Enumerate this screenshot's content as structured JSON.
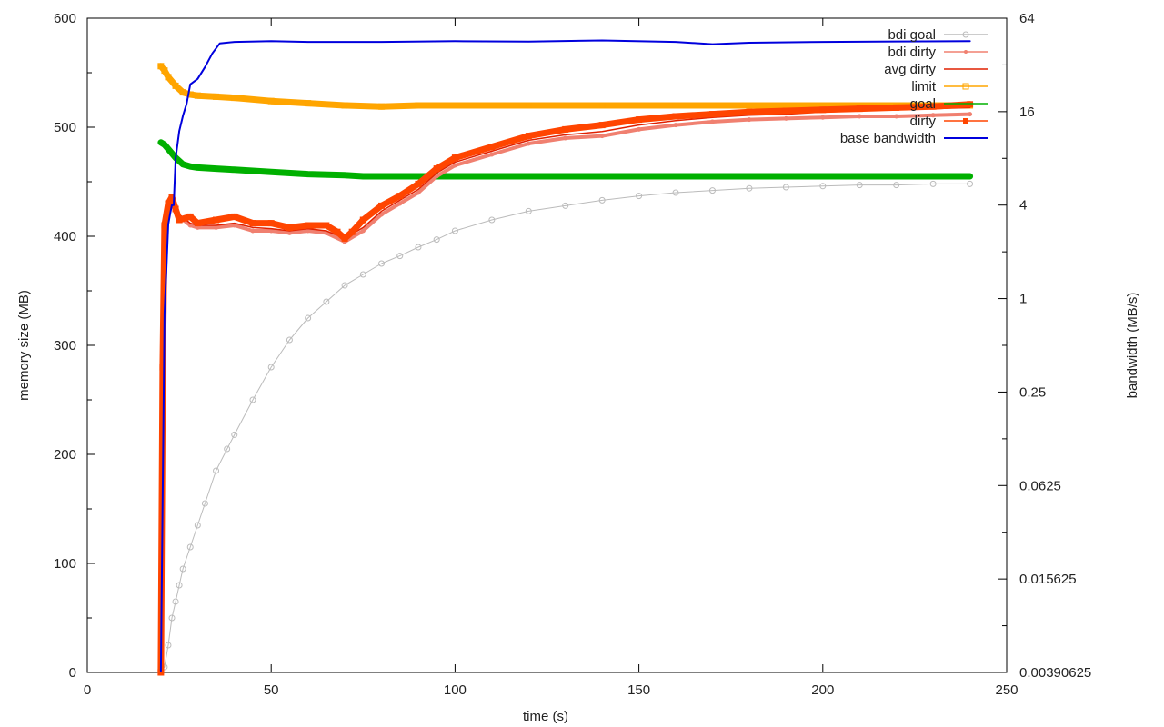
{
  "chart_data": {
    "type": "line",
    "title": "",
    "xlabel": "time (s)",
    "ylabel": "memory size (MB)",
    "y2label": "bandwidth (MB/s)",
    "xlim": [
      0,
      250
    ],
    "ylim": [
      0,
      600
    ],
    "y2lim": [
      0.00390625,
      64
    ],
    "y2scale": "log",
    "grid": false,
    "legend_position": "top-right",
    "xticks": [
      "0",
      "50",
      "100",
      "150",
      "200",
      "250"
    ],
    "yticks": [
      "0",
      "100",
      "200",
      "300",
      "400",
      "500",
      "600"
    ],
    "y2ticks": [
      "0.00390625",
      "0.015625",
      "0.0625",
      "0.25",
      "1",
      "4",
      "16",
      "64"
    ],
    "series": [
      {
        "name": "bdi goal",
        "color": "#bbbbbb",
        "axis": "left",
        "marker": "circle",
        "x": [
          20,
          21,
          22,
          23,
          24,
          25,
          26,
          28,
          30,
          32,
          35,
          38,
          40,
          45,
          50,
          55,
          60,
          65,
          70,
          75,
          80,
          85,
          90,
          95,
          100,
          110,
          120,
          130,
          140,
          150,
          160,
          170,
          180,
          190,
          200,
          210,
          220,
          230,
          240
        ],
        "values": [
          0,
          5,
          25,
          50,
          65,
          80,
          95,
          115,
          135,
          155,
          185,
          205,
          218,
          250,
          280,
          305,
          325,
          340,
          355,
          365,
          375,
          382,
          390,
          397,
          405,
          415,
          423,
          428,
          433,
          437,
          440,
          442,
          444,
          445,
          446,
          447,
          447,
          448,
          448
        ]
      },
      {
        "name": "bdi dirty",
        "color": "#f08070",
        "axis": "left",
        "marker": "diamond",
        "x": [
          20,
          20.5,
          21,
          22,
          23,
          25,
          28,
          30,
          35,
          40,
          45,
          50,
          55,
          60,
          65,
          70,
          75,
          80,
          85,
          90,
          95,
          100,
          110,
          120,
          130,
          140,
          150,
          160,
          170,
          180,
          190,
          200,
          210,
          220,
          230,
          240
        ],
        "values": [
          0,
          250,
          400,
          425,
          430,
          418,
          410,
          408,
          408,
          410,
          405,
          405,
          403,
          405,
          403,
          395,
          405,
          420,
          430,
          440,
          455,
          465,
          475,
          485,
          490,
          492,
          498,
          502,
          505,
          507,
          508,
          509,
          510,
          510,
          511,
          512
        ]
      },
      {
        "name": "avg dirty",
        "color": "#e02000",
        "axis": "left",
        "marker": "none",
        "x": [
          20,
          20.5,
          21,
          22,
          23,
          25,
          28,
          30,
          35,
          40,
          45,
          50,
          55,
          60,
          65,
          70,
          75,
          80,
          85,
          90,
          95,
          100,
          110,
          120,
          130,
          140,
          150,
          160,
          170,
          180,
          190,
          200,
          210,
          220,
          230,
          240
        ],
        "values": [
          0,
          260,
          405,
          428,
          432,
          420,
          412,
          410,
          410,
          412,
          408,
          407,
          405,
          407,
          405,
          398,
          408,
          423,
          433,
          443,
          458,
          468,
          478,
          488,
          493,
          496,
          502,
          506,
          509,
          511,
          512,
          514,
          515,
          516,
          517,
          518
        ]
      },
      {
        "name": "limit",
        "color": "#ffa500",
        "axis": "left",
        "marker": "square",
        "x": [
          20,
          21,
          22,
          24,
          26,
          28,
          30,
          35,
          40,
          50,
          60,
          70,
          80,
          90,
          100,
          120,
          140,
          160,
          180,
          200,
          220,
          240
        ],
        "values": [
          556,
          552,
          546,
          538,
          532,
          530,
          529,
          528,
          527,
          524,
          522,
          520,
          519,
          520,
          520,
          520,
          520,
          520,
          520,
          520,
          520,
          520
        ]
      },
      {
        "name": "goal",
        "color": "#00b000",
        "axis": "left",
        "marker": "none",
        "x": [
          20,
          21,
          22,
          24,
          26,
          28,
          30,
          35,
          40,
          50,
          60,
          70,
          75,
          80,
          90,
          100,
          120,
          140,
          160,
          180,
          200,
          220,
          240
        ],
        "values": [
          486,
          484,
          480,
          472,
          466,
          464,
          463,
          462,
          461,
          459,
          457,
          456,
          455,
          455,
          455,
          455,
          455,
          455,
          455,
          455,
          455,
          455,
          455
        ]
      },
      {
        "name": "dirty",
        "color": "#ff4500",
        "axis": "left",
        "marker": "filled-square",
        "x": [
          20,
          20.5,
          21,
          22,
          23,
          24,
          25,
          28,
          30,
          35,
          40,
          45,
          50,
          55,
          60,
          65,
          68,
          70,
          72,
          75,
          80,
          85,
          90,
          95,
          100,
          110,
          120,
          130,
          140,
          150,
          160,
          170,
          180,
          190,
          200,
          210,
          220,
          230,
          240
        ],
        "values": [
          0,
          280,
          410,
          430,
          436,
          425,
          415,
          418,
          412,
          415,
          418,
          412,
          412,
          408,
          410,
          410,
          404,
          398,
          404,
          415,
          428,
          437,
          448,
          462,
          472,
          482,
          492,
          498,
          502,
          507,
          510,
          512,
          514,
          515,
          516,
          517,
          518,
          519,
          521
        ]
      },
      {
        "name": "base bandwidth",
        "color": "#0000dd",
        "axis": "right",
        "marker": "none",
        "x": [
          20,
          21,
          21.5,
          22,
          22.5,
          23,
          23.5,
          24,
          25,
          26,
          27,
          28,
          30,
          32,
          34,
          36,
          40,
          50,
          60,
          80,
          100,
          120,
          140,
          160,
          170,
          180,
          200,
          220,
          240
        ],
        "values": [
          0.004,
          0.8,
          1.5,
          3.0,
          3.5,
          4.0,
          4.0,
          8.0,
          12.0,
          15.0,
          18.0,
          24.0,
          26.0,
          31.0,
          38.0,
          44.0,
          45.0,
          45.5,
          45.0,
          45.0,
          45.5,
          45.2,
          46.0,
          45.0,
          43.5,
          44.5,
          45.0,
          45.3,
          45.5
        ]
      }
    ]
  }
}
